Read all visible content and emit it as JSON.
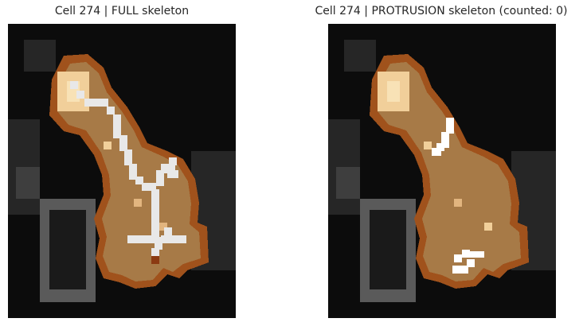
{
  "figure": {
    "panels": [
      {
        "title": "Cell 274 | FULL skeleton",
        "skeleton_type": "full"
      },
      {
        "title": "Cell 274 | PROTRUSION skeleton (counted: 0)",
        "skeleton_type": "protrusion",
        "protrusions_counted": 0
      }
    ]
  },
  "colors": {
    "background": "#0c0c0c",
    "cell_outline": "#a0521c",
    "cell_fill": "#a77a47",
    "cell_highlight": "#f1cf9a",
    "skeleton": "#e8e8e8",
    "branch_point": "#8b3a12",
    "gray_structure": "#6a6a6a"
  }
}
